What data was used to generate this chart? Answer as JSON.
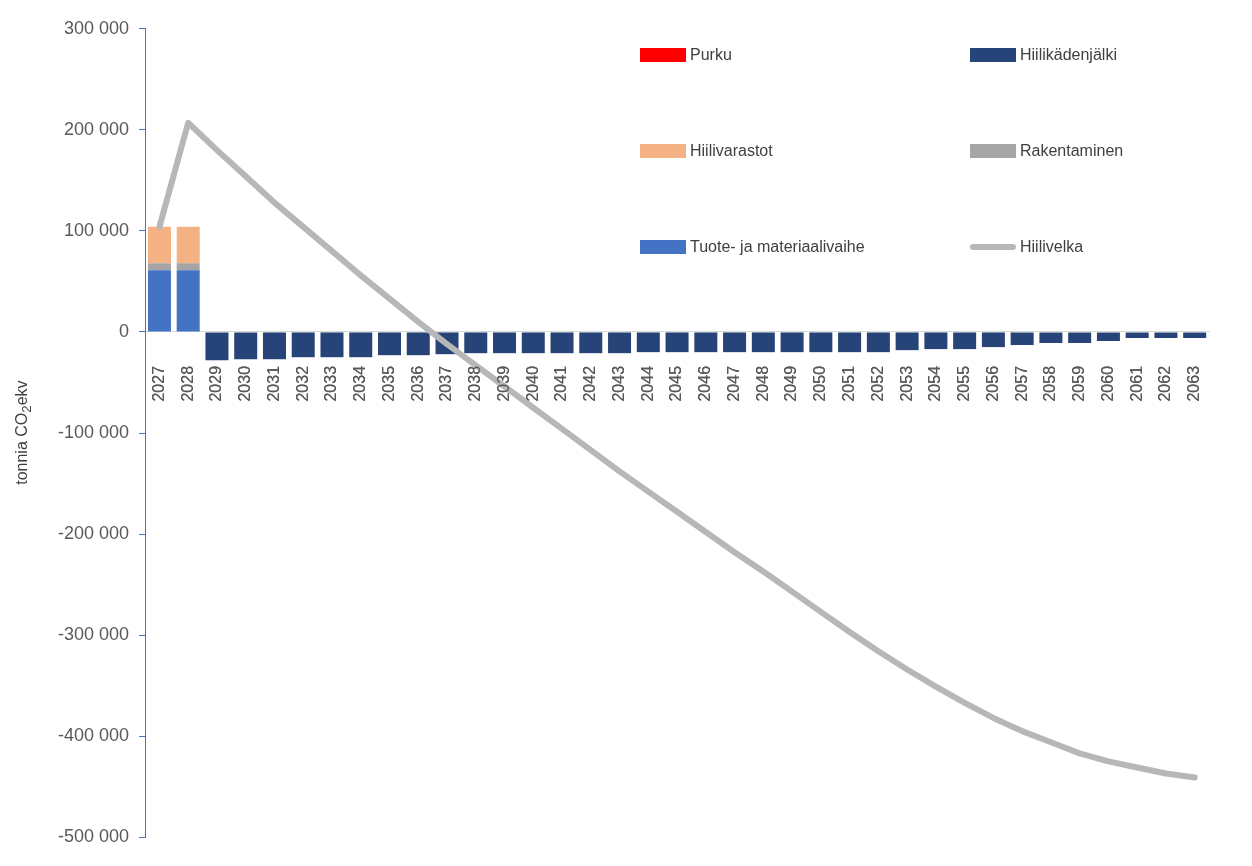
{
  "chart_data": {
    "type": "bar",
    "stacked": true,
    "ylabel": "tonnia CO$_{2}$ekv",
    "categories": [
      "2027",
      "2028",
      "2029",
      "2030",
      "2031",
      "2032",
      "2033",
      "2034",
      "2035",
      "2036",
      "2037",
      "2038",
      "2039",
      "2040",
      "2041",
      "2042",
      "2043",
      "2044",
      "2045",
      "2046",
      "2047",
      "2048",
      "2049",
      "2050",
      "2051",
      "2052",
      "2053",
      "2054",
      "2055",
      "2056",
      "2057",
      "2058",
      "2059",
      "2060",
      "2061",
      "2062",
      "2063"
    ],
    "series": [
      {
        "name": "Tuote- ja materiaalivaihe",
        "color": "#4472c4",
        "values": [
          61000,
          61000,
          null,
          null,
          null,
          null,
          null,
          null,
          null,
          null,
          null,
          null,
          null,
          null,
          null,
          null,
          null,
          null,
          null,
          null,
          null,
          null,
          null,
          null,
          null,
          null,
          null,
          null,
          null,
          null,
          null,
          null,
          null,
          null,
          null,
          null,
          null
        ]
      },
      {
        "name": "Rakentaminen",
        "color": "#a5a5a5",
        "values": [
          7000,
          7000,
          null,
          null,
          null,
          null,
          null,
          null,
          null,
          null,
          null,
          null,
          null,
          null,
          null,
          null,
          null,
          null,
          null,
          null,
          null,
          null,
          null,
          null,
          null,
          null,
          null,
          null,
          null,
          null,
          null,
          null,
          null,
          null,
          null,
          null,
          null
        ]
      },
      {
        "name": "Hiilivarastot",
        "color": "#f4b183",
        "values": [
          36000,
          36000,
          null,
          null,
          null,
          null,
          null,
          null,
          null,
          null,
          null,
          null,
          null,
          null,
          null,
          null,
          null,
          null,
          null,
          null,
          null,
          null,
          null,
          null,
          null,
          null,
          null,
          null,
          null,
          null,
          null,
          null,
          null,
          null,
          null,
          null,
          null
        ]
      },
      {
        "name": "Purku",
        "color": "#ff0000",
        "values": [
          0,
          0,
          null,
          null,
          null,
          null,
          null,
          null,
          null,
          null,
          null,
          null,
          null,
          null,
          null,
          null,
          null,
          null,
          null,
          null,
          null,
          null,
          null,
          null,
          null,
          null,
          null,
          null,
          null,
          null,
          null,
          null,
          null,
          null,
          null,
          null,
          null
        ]
      },
      {
        "name": "Hiilikädenjälki",
        "color": "#264478",
        "values": [
          null,
          null,
          -28000,
          -27000,
          -27000,
          -25000,
          -25000,
          -25000,
          -23000,
          -23000,
          -22000,
          -21000,
          -21000,
          -21000,
          -21000,
          -21000,
          -21000,
          -20000,
          -20000,
          -20000,
          -20000,
          -20000,
          -20000,
          -20000,
          -20000,
          -20000,
          -18000,
          -17000,
          -17000,
          -15000,
          -13000,
          -11000,
          -11000,
          -9000,
          -6000,
          -6000,
          -6000
        ]
      },
      {
        "name": "Hiilivelka",
        "type": "line",
        "color": "#b7b7b7",
        "values": [
          104000,
          207000,
          180000,
          154000,
          128000,
          104000,
          80000,
          56000,
          33000,
          10000,
          -12000,
          -33000,
          -54000,
          -75000,
          -96000,
          -117000,
          -138000,
          -158000,
          -178000,
          -198000,
          -218000,
          -237000,
          -257000,
          -277000,
          -297000,
          -316000,
          -334000,
          -351000,
          -367000,
          -382000,
          -395000,
          -406000,
          -417000,
          -425000,
          -431000,
          -437000,
          -441000
        ]
      }
    ],
    "ylim": [
      -500000,
      300000
    ],
    "yticks": [
      {
        "value": -500000,
        "label": "-500 000"
      },
      {
        "value": -400000,
        "label": "-400 000"
      },
      {
        "value": -300000,
        "label": "-300 000"
      },
      {
        "value": -200000,
        "label": "-200 000"
      },
      {
        "value": -100000,
        "label": "-100 000"
      },
      {
        "value": 0,
        "label": "0"
      },
      {
        "value": 100000,
        "label": "100 000"
      },
      {
        "value": 200000,
        "label": "200 000"
      },
      {
        "value": 300000,
        "label": "300 000"
      }
    ],
    "grid": false,
    "legend": "top right",
    "marker": "none",
    "line_style": "solid"
  }
}
